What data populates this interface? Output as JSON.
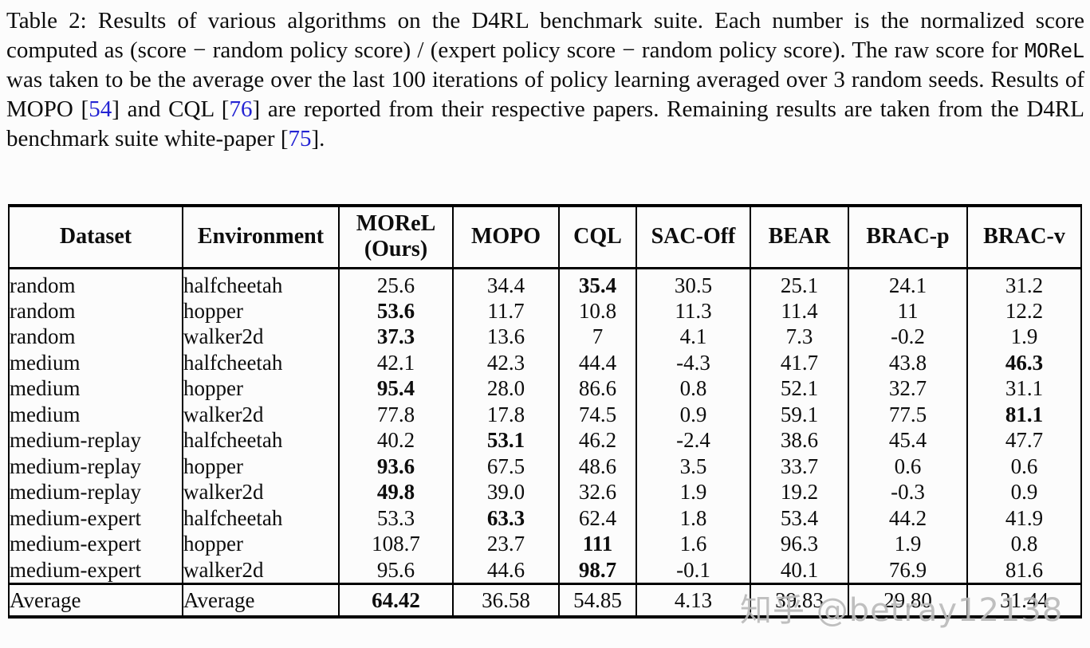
{
  "caption": {
    "segments": [
      {
        "style": "normal",
        "text": "Table 2: Results of various algorithms on the D4RL benchmark suite. Each number is the normalized score computed as (score − random policy score) / (expert policy score − random policy score). The raw score for "
      },
      {
        "style": "mono",
        "text": "MOReL"
      },
      {
        "style": "normal",
        "text": " was taken to be the average over the last 100 iterations of policy learning averaged over 3 random seeds. Results of MOPO ["
      },
      {
        "style": "cite",
        "text": "54"
      },
      {
        "style": "normal",
        "text": "] and CQL ["
      },
      {
        "style": "cite",
        "text": "76"
      },
      {
        "style": "normal",
        "text": "] are reported from their respective papers. Remaining results are taken from the D4RL benchmark suite white-paper ["
      },
      {
        "style": "cite",
        "text": "75"
      },
      {
        "style": "normal",
        "text": "]."
      }
    ]
  },
  "table": {
    "columns": [
      {
        "key": "dataset",
        "label": "Dataset"
      },
      {
        "key": "environment",
        "label": "Environment"
      },
      {
        "key": "morel",
        "label": "MOReL\n(Ours)"
      },
      {
        "key": "mopo",
        "label": "MOPO"
      },
      {
        "key": "cql",
        "label": "CQL"
      },
      {
        "key": "sac-off",
        "label": "SAC-Off"
      },
      {
        "key": "bear",
        "label": "BEAR"
      },
      {
        "key": "brac-p",
        "label": "BRAC-p"
      },
      {
        "key": "brac-v",
        "label": "BRAC-v"
      }
    ],
    "rows": [
      {
        "dataset": "random",
        "environment": "halfcheetah",
        "values": [
          "25.6",
          "34.4",
          "35.4",
          "30.5",
          "25.1",
          "24.1",
          "31.2"
        ],
        "bold": [
          2
        ]
      },
      {
        "dataset": "random",
        "environment": "hopper",
        "values": [
          "53.6",
          "11.7",
          "10.8",
          "11.3",
          "11.4",
          "11",
          "12.2"
        ],
        "bold": [
          0
        ]
      },
      {
        "dataset": "random",
        "environment": "walker2d",
        "values": [
          "37.3",
          "13.6",
          "7",
          "4.1",
          "7.3",
          "-0.2",
          "1.9"
        ],
        "bold": [
          0
        ]
      },
      {
        "dataset": "medium",
        "environment": "halfcheetah",
        "values": [
          "42.1",
          "42.3",
          "44.4",
          "-4.3",
          "41.7",
          "43.8",
          "46.3"
        ],
        "bold": [
          6
        ]
      },
      {
        "dataset": "medium",
        "environment": "hopper",
        "values": [
          "95.4",
          "28.0",
          "86.6",
          "0.8",
          "52.1",
          "32.7",
          "31.1"
        ],
        "bold": [
          0
        ]
      },
      {
        "dataset": "medium",
        "environment": "walker2d",
        "values": [
          "77.8",
          "17.8",
          "74.5",
          "0.9",
          "59.1",
          "77.5",
          "81.1"
        ],
        "bold": [
          6
        ]
      },
      {
        "dataset": "medium-replay",
        "environment": "halfcheetah",
        "values": [
          "40.2",
          "53.1",
          "46.2",
          "-2.4",
          "38.6",
          "45.4",
          "47.7"
        ],
        "bold": [
          1
        ]
      },
      {
        "dataset": "medium-replay",
        "environment": "hopper",
        "values": [
          "93.6",
          "67.5",
          "48.6",
          "3.5",
          "33.7",
          "0.6",
          "0.6"
        ],
        "bold": [
          0
        ]
      },
      {
        "dataset": "medium-replay",
        "environment": "walker2d",
        "values": [
          "49.8",
          "39.0",
          "32.6",
          "1.9",
          "19.2",
          "-0.3",
          "0.9"
        ],
        "bold": [
          0
        ]
      },
      {
        "dataset": "medium-expert",
        "environment": "halfcheetah",
        "values": [
          "53.3",
          "63.3",
          "62.4",
          "1.8",
          "53.4",
          "44.2",
          "41.9"
        ],
        "bold": [
          1
        ]
      },
      {
        "dataset": "medium-expert",
        "environment": "hopper",
        "values": [
          "108.7",
          "23.7",
          "111",
          "1.6",
          "96.3",
          "1.9",
          "0.8"
        ],
        "bold": [
          2
        ]
      },
      {
        "dataset": "medium-expert",
        "environment": "walker2d",
        "values": [
          "95.6",
          "44.6",
          "98.7",
          "-0.1",
          "40.1",
          "76.9",
          "81.6"
        ],
        "bold": [
          2
        ]
      }
    ],
    "average_row": {
      "dataset": "Average",
      "environment": "Average",
      "values": [
        "64.42",
        "36.58",
        "54.85",
        "4.13",
        "39.83",
        "29.80",
        "31.44"
      ],
      "bold": [
        0
      ]
    }
  },
  "watermark": {
    "text": "知乎 @betray12138",
    "color": "#bababa"
  },
  "colors": {
    "citation": "#2323d3",
    "text": "#0d0d0d",
    "rule": "#000000",
    "background": "#fcfcfc"
  }
}
